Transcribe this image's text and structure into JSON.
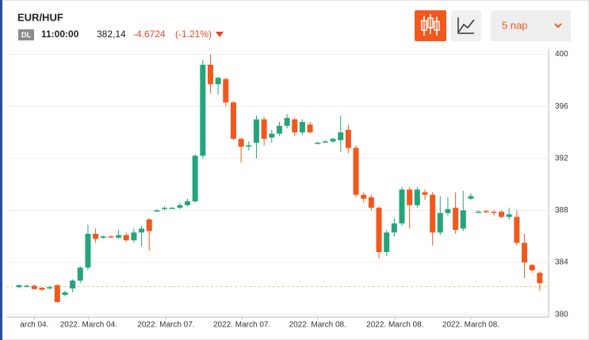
{
  "chart_data": {
    "type": "candlestick",
    "title": "EUR/HUF",
    "badge": "DL",
    "time": "11:00:00",
    "last": {
      "value": 382.14,
      "label": "382,14"
    },
    "change": -4.6724,
    "change_pct": {
      "value": -1.21,
      "label": "(-1.21%)"
    },
    "period": "5 nap",
    "up_color": "#26a47c",
    "down_color": "#f2581e",
    "last_line_color": "#e6d35a",
    "categories": [
      null,
      null,
      null,
      null,
      null,
      null,
      null,
      null,
      null,
      null,
      null,
      null,
      null,
      null,
      null,
      null,
      null,
      null,
      null,
      null,
      null,
      null,
      null,
      null,
      null,
      null,
      null,
      null,
      null,
      null,
      null,
      null,
      null,
      null,
      null,
      null,
      null,
      null,
      null,
      null,
      null,
      null,
      null,
      null,
      null,
      null,
      null,
      null,
      null,
      null,
      null,
      null,
      null,
      null,
      null,
      null,
      null,
      null,
      null,
      null,
      null,
      null,
      null,
      null,
      null,
      null,
      null,
      null,
      null
    ],
    "open": [
      382.1,
      382.2,
      382.2,
      382.05,
      382.0,
      382.25,
      381.5,
      382.0,
      382.6,
      383.6,
      386.2,
      385.9,
      386.0,
      385.9,
      386.1,
      385.7,
      386.3,
      387.3,
      388.0,
      388.1,
      388.2,
      388.2,
      388.4,
      388.7,
      392.2,
      399.2,
      397.7,
      398.1,
      396.3,
      393.5,
      392.9,
      393.2,
      395.0,
      393.6,
      393.9,
      394.5,
      395.0,
      394.0,
      394.6,
      393.2,
      393.3,
      393.3,
      393.4,
      394.2,
      392.8,
      389.2,
      389.0,
      388.2,
      384.8,
      386.3,
      387.0,
      389.6,
      388.4,
      389.4,
      389.2,
      386.3,
      387.8,
      388.2,
      386.6,
      388.9,
      387.9,
      387.95,
      387.9,
      387.9,
      387.5,
      387.5,
      385.5,
      383.8,
      383.2
    ],
    "high": [
      382.3,
      382.3,
      382.3,
      382.1,
      382.2,
      382.3,
      381.8,
      382.7,
      383.7,
      386.9,
      386.6,
      386.1,
      386.1,
      386.5,
      386.3,
      386.6,
      386.8,
      387.4,
      388.1,
      388.3,
      388.25,
      388.6,
      388.9,
      392.3,
      399.6,
      400.0,
      398.3,
      398.2,
      396.4,
      393.6,
      393.3,
      395.3,
      395.2,
      394.2,
      394.8,
      395.4,
      395.1,
      395.0,
      394.8,
      393.3,
      393.4,
      393.6,
      395.3,
      394.6,
      393.0,
      389.4,
      389.2,
      388.3,
      386.5,
      387.4,
      389.8,
      389.8,
      389.8,
      389.6,
      389.4,
      389.1,
      389.0,
      389.4,
      389.5,
      389.3,
      388.0,
      388.0,
      388.0,
      388.0,
      388.2,
      388.0,
      386.2,
      383.9,
      383.3
    ],
    "low": [
      382.0,
      382.1,
      381.9,
      381.8,
      381.9,
      380.9,
      381.4,
      381.7,
      382.4,
      383.4,
      385.5,
      385.8,
      385.9,
      385.8,
      385.6,
      385.5,
      385.2,
      384.9,
      387.9,
      388.0,
      388.1,
      388.1,
      388.3,
      388.6,
      392.0,
      397.0,
      396.9,
      396.0,
      393.4,
      391.7,
      392.6,
      392.0,
      393.0,
      393.2,
      393.7,
      394.3,
      393.7,
      393.8,
      393.9,
      393.1,
      393.2,
      393.2,
      392.5,
      392.4,
      389.0,
      388.6,
      388.0,
      384.3,
      384.5,
      386.0,
      386.8,
      386.6,
      388.2,
      388.8,
      385.3,
      386.1,
      387.6,
      386.2,
      386.4,
      388.8,
      387.8,
      387.8,
      387.6,
      387.4,
      387.3,
      385.3,
      382.8,
      383.2,
      381.8
    ],
    "close": [
      382.25,
      382.2,
      381.95,
      381.9,
      382.1,
      380.95,
      381.7,
      382.6,
      383.6,
      386.2,
      385.8,
      386.0,
      385.95,
      386.1,
      385.7,
      386.3,
      386.6,
      386.4,
      388.0,
      388.2,
      388.2,
      388.4,
      388.7,
      392.2,
      399.2,
      397.7,
      398.2,
      396.3,
      393.5,
      392.9,
      393.0,
      395.0,
      393.5,
      393.9,
      394.5,
      395.1,
      394.0,
      394.8,
      394.0,
      393.2,
      393.3,
      393.5,
      394.0,
      392.8,
      389.2,
      388.9,
      388.2,
      384.8,
      386.3,
      387.0,
      389.6,
      388.4,
      389.6,
      389.2,
      386.3,
      387.8,
      388.1,
      386.5,
      388.0,
      389.1,
      387.9,
      387.9,
      387.85,
      387.5,
      387.7,
      385.5,
      384.0,
      383.4,
      382.4
    ],
    "ylim": [
      379.8,
      400.4
    ],
    "yticks": [
      380,
      384,
      388,
      392,
      396,
      400
    ],
    "xlim": [
      -1.24,
      69.15
    ],
    "xticks": [
      {
        "value": 2,
        "label": "arch 04."
      },
      {
        "value": 9.1,
        "label": "2022. March 04."
      },
      {
        "value": 19.2,
        "label": "2022. March 07."
      },
      {
        "value": 29.1,
        "label": "2022. March 07."
      },
      {
        "value": 39,
        "label": "2022. March 08."
      },
      {
        "value": 49.1,
        "label": "2022. March 08."
      },
      {
        "value": 59,
        "label": "2022. March 08."
      }
    ],
    "grid": true
  }
}
